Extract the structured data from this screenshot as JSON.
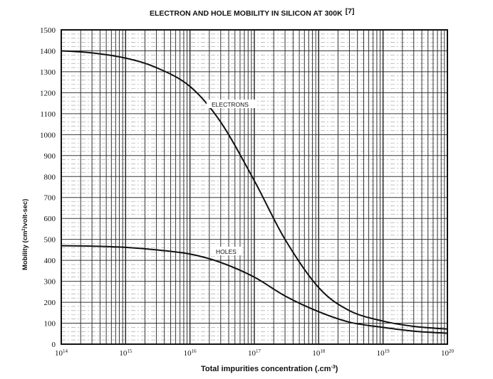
{
  "chart_data": {
    "type": "line",
    "title": "ELECTRON AND HOLE MOBILITY IN SILICON AT 300K",
    "title_ref": "[7]",
    "xlabel": "Total impurities concentration (.cm",
    "xlabel_sup": "-3",
    "xlabel_end": ")",
    "ylabel": "Mobility (cm",
    "ylabel_sup": "2",
    "ylabel_end": "/volt-sec)",
    "xscale": "log",
    "xlim": [
      100000000000000.0,
      1e+20
    ],
    "ylim": [
      0,
      1500
    ],
    "grid": true,
    "x_ticks": [
      {
        "base": "10",
        "exp": "14"
      },
      {
        "base": "10",
        "exp": "15"
      },
      {
        "base": "10",
        "exp": "16"
      },
      {
        "base": "10",
        "exp": "17"
      },
      {
        "base": "10",
        "exp": "18"
      },
      {
        "base": "10",
        "exp": "19"
      },
      {
        "base": "10",
        "exp": "20"
      }
    ],
    "y_ticks": [
      "0",
      "100",
      "200",
      "300",
      "400",
      "500",
      "600",
      "700",
      "800",
      "900",
      "1000",
      "1100",
      "1200",
      "1300",
      "1400",
      "1500"
    ],
    "series": [
      {
        "name": "ELECTRONS",
        "x": [
          100000000000000.0,
          300000000000000.0,
          1000000000000000.0,
          3000000000000000.0,
          1e+16,
          3e+16,
          1e+17,
          3e+17,
          1e+18,
          3e+18,
          1e+19,
          3e+19,
          1e+20
        ],
        "y": [
          1400,
          1390,
          1365,
          1320,
          1230,
          1060,
          780,
          500,
          270,
          160,
          110,
          85,
          72
        ]
      },
      {
        "name": "HOLES",
        "x": [
          100000000000000.0,
          300000000000000.0,
          1000000000000000.0,
          3000000000000000.0,
          1e+16,
          3e+16,
          1e+17,
          3e+17,
          1e+18,
          3e+18,
          1e+19,
          3e+19,
          1e+20
        ],
        "y": [
          470,
          468,
          462,
          450,
          430,
          390,
          320,
          230,
          155,
          105,
          80,
          62,
          52
        ]
      }
    ],
    "colors": {
      "line": "#111111",
      "grid": "#222222"
    }
  }
}
